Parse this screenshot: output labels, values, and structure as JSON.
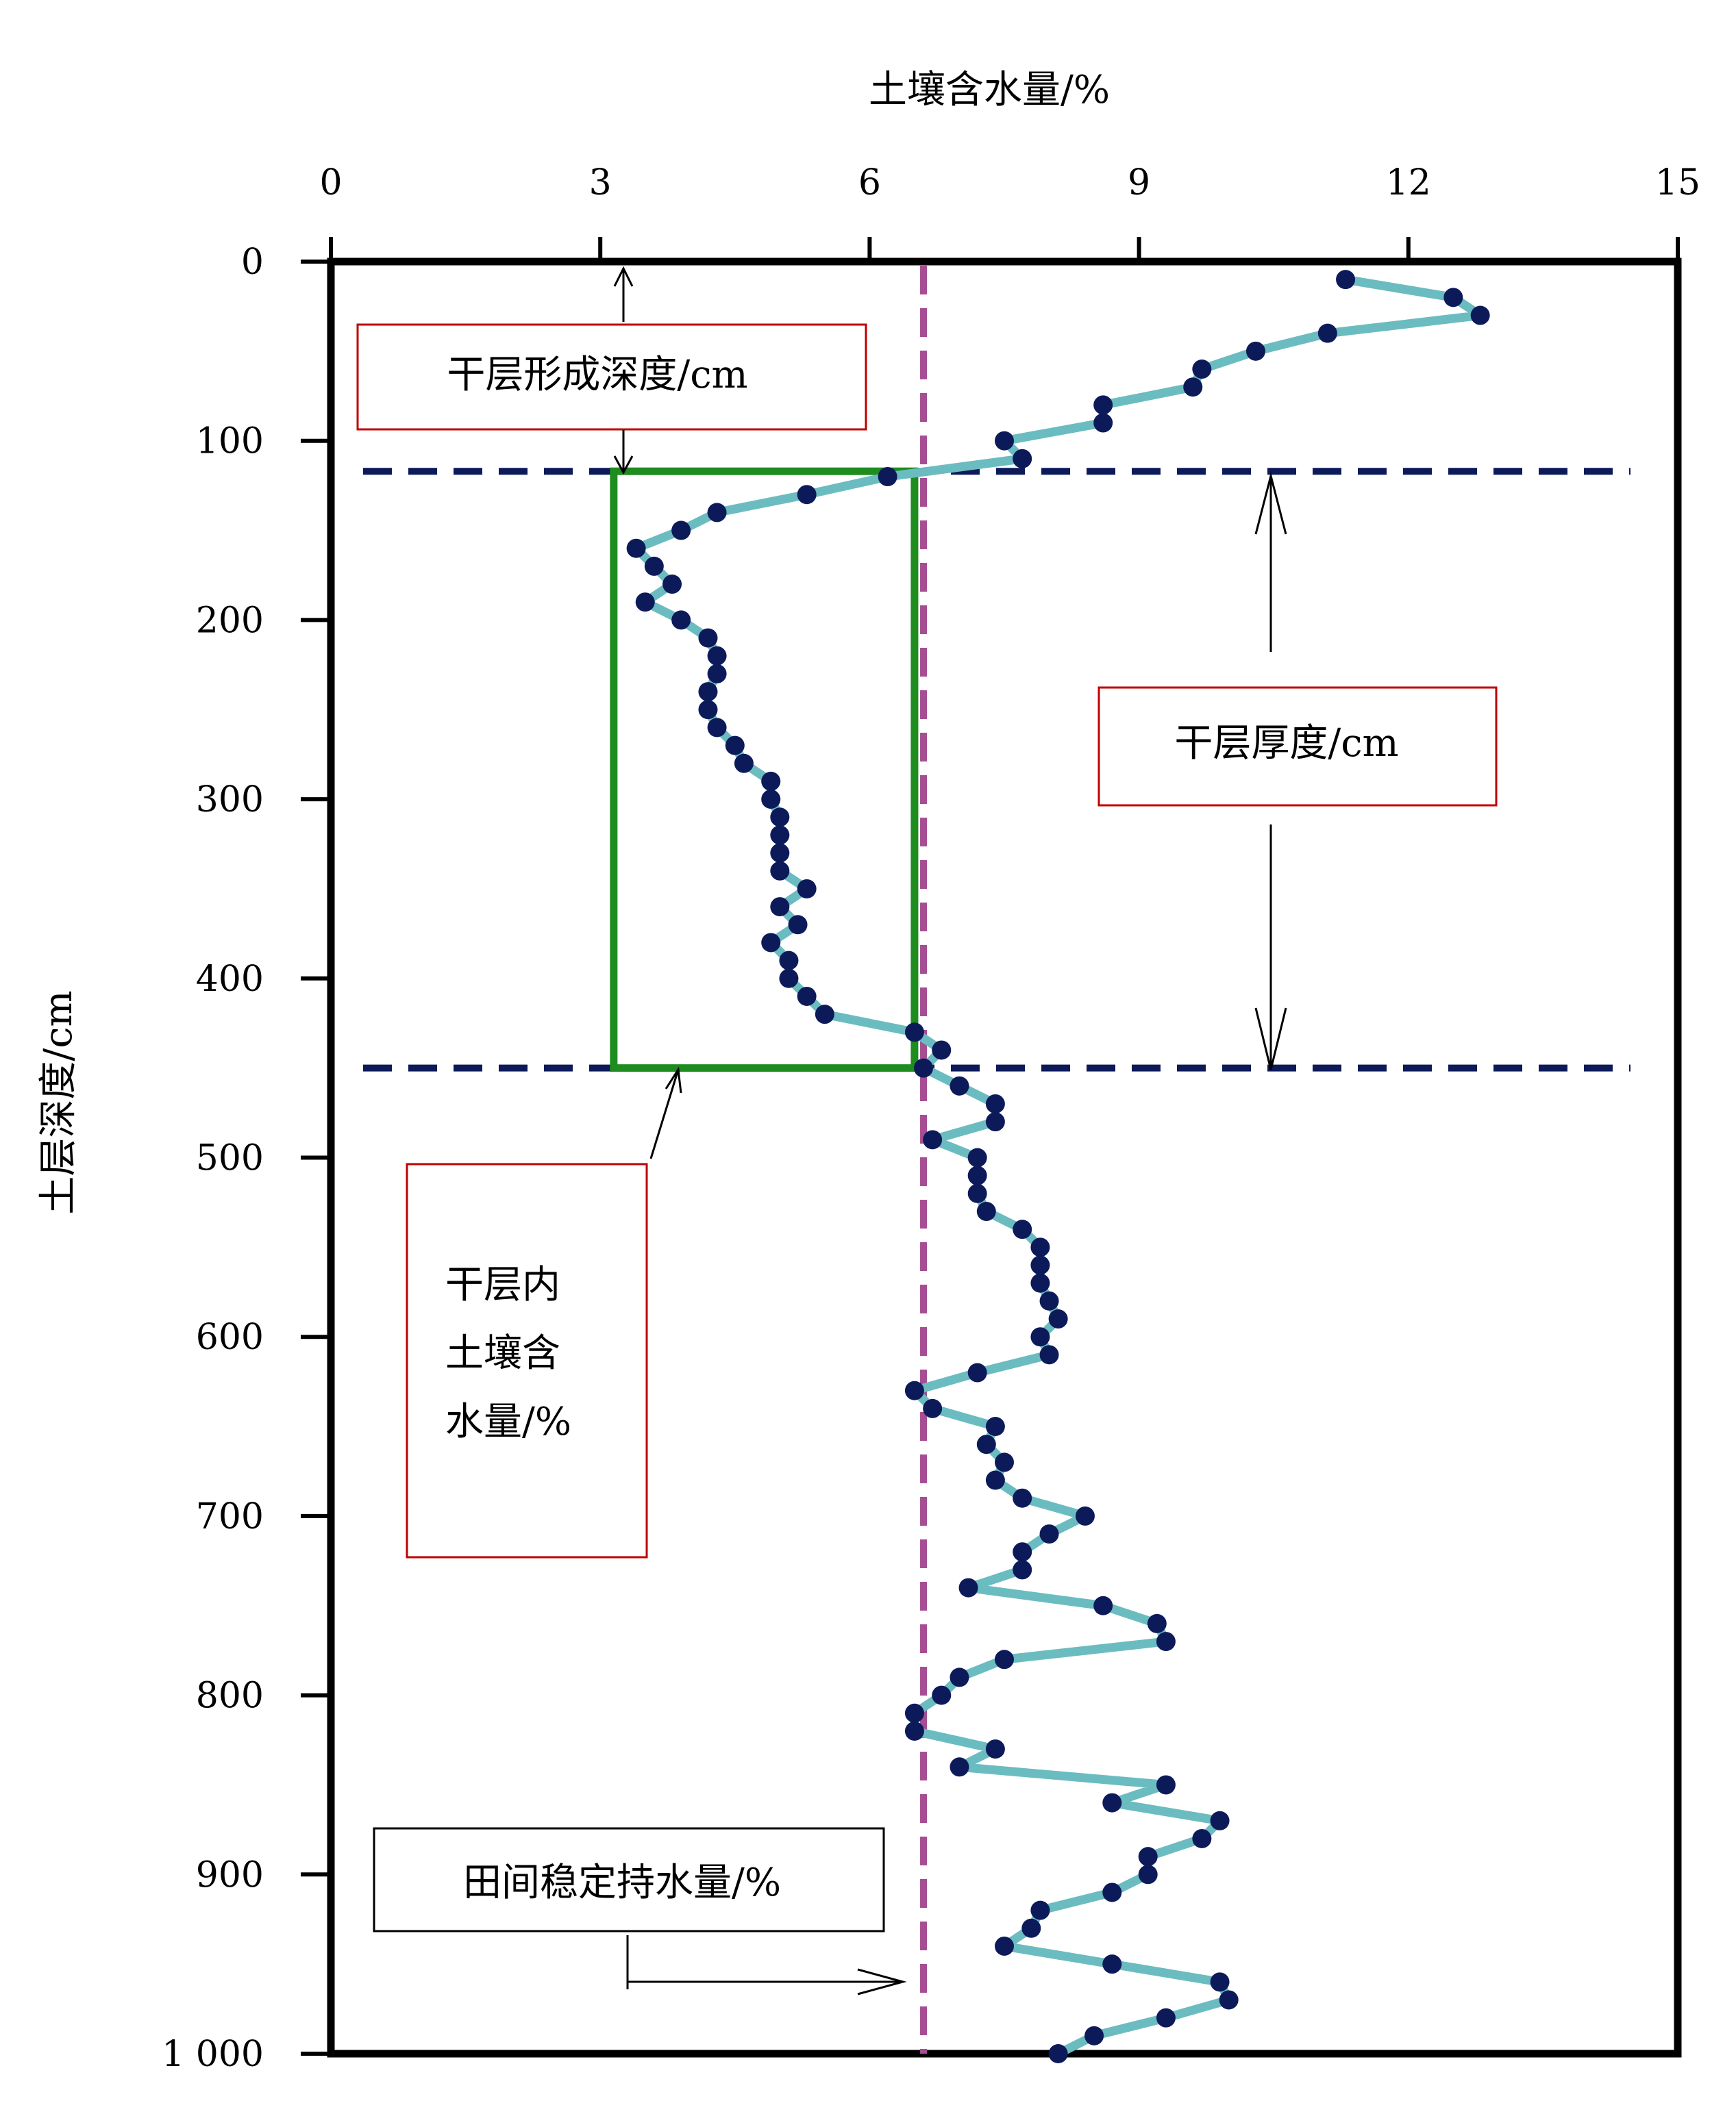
{
  "chart_data": {
    "type": "line",
    "title": "",
    "xlabel": "土壤含水量/%",
    "ylabel": "土层深度/cm",
    "xlim": [
      0,
      15
    ],
    "ylim": [
      0,
      1000
    ],
    "x_ticks": [
      0,
      3,
      6,
      9,
      12,
      15
    ],
    "x_tick_labels": [
      "0",
      "3",
      "6",
      "9",
      "12",
      "15"
    ],
    "y_ticks": [
      0,
      100,
      200,
      300,
      400,
      500,
      600,
      700,
      800,
      900,
      1000
    ],
    "y_tick_labels": [
      "0",
      "100",
      "200",
      "300",
      "400",
      "500",
      "600",
      "700",
      "800",
      "900",
      "1 000"
    ],
    "y_inverted": true,
    "x_axis_position": "top",
    "grid": false,
    "series": [
      {
        "color": "#6bbcc0",
        "marker_color": "#0d1a5a",
        "points": [
          [
            11.3,
            10
          ],
          [
            12.5,
            20
          ],
          [
            12.8,
            30
          ],
          [
            11.1,
            40
          ],
          [
            10.3,
            50
          ],
          [
            9.7,
            60
          ],
          [
            9.6,
            70
          ],
          [
            8.6,
            80
          ],
          [
            8.6,
            90
          ],
          [
            7.5,
            100
          ],
          [
            7.7,
            110
          ],
          [
            6.2,
            120
          ],
          [
            5.3,
            130
          ],
          [
            4.3,
            140
          ],
          [
            3.9,
            150
          ],
          [
            3.4,
            160
          ],
          [
            3.6,
            170
          ],
          [
            3.8,
            180
          ],
          [
            3.5,
            190
          ],
          [
            3.9,
            200
          ],
          [
            4.2,
            210
          ],
          [
            4.3,
            220
          ],
          [
            4.3,
            230
          ],
          [
            4.2,
            240
          ],
          [
            4.2,
            250
          ],
          [
            4.3,
            260
          ],
          [
            4.5,
            270
          ],
          [
            4.6,
            280
          ],
          [
            4.9,
            290
          ],
          [
            4.9,
            300
          ],
          [
            5.0,
            310
          ],
          [
            5.0,
            320
          ],
          [
            5.0,
            330
          ],
          [
            5.0,
            340
          ],
          [
            5.3,
            350
          ],
          [
            5.0,
            360
          ],
          [
            5.2,
            370
          ],
          [
            4.9,
            380
          ],
          [
            5.1,
            390
          ],
          [
            5.1,
            400
          ],
          [
            5.3,
            410
          ],
          [
            5.5,
            420
          ],
          [
            6.5,
            430
          ],
          [
            6.8,
            440
          ],
          [
            6.6,
            450
          ],
          [
            7.0,
            460
          ],
          [
            7.4,
            470
          ],
          [
            7.4,
            480
          ],
          [
            6.7,
            490
          ],
          [
            7.2,
            500
          ],
          [
            7.2,
            510
          ],
          [
            7.2,
            520
          ],
          [
            7.3,
            530
          ],
          [
            7.7,
            540
          ],
          [
            7.9,
            550
          ],
          [
            7.9,
            560
          ],
          [
            7.9,
            570
          ],
          [
            8.0,
            580
          ],
          [
            8.1,
            590
          ],
          [
            7.9,
            600
          ],
          [
            8.0,
            610
          ],
          [
            7.2,
            620
          ],
          [
            6.5,
            630
          ],
          [
            6.7,
            640
          ],
          [
            7.4,
            650
          ],
          [
            7.3,
            660
          ],
          [
            7.5,
            670
          ],
          [
            7.4,
            680
          ],
          [
            7.7,
            690
          ],
          [
            8.4,
            700
          ],
          [
            8.0,
            710
          ],
          [
            7.7,
            720
          ],
          [
            7.7,
            730
          ],
          [
            7.1,
            740
          ],
          [
            8.6,
            750
          ],
          [
            9.2,
            760
          ],
          [
            9.3,
            770
          ],
          [
            7.5,
            780
          ],
          [
            7.0,
            790
          ],
          [
            6.8,
            800
          ],
          [
            6.5,
            810
          ],
          [
            6.5,
            820
          ],
          [
            7.4,
            830
          ],
          [
            7.0,
            840
          ],
          [
            9.3,
            850
          ],
          [
            8.7,
            860
          ],
          [
            9.9,
            870
          ],
          [
            9.7,
            880
          ],
          [
            9.1,
            890
          ],
          [
            9.1,
            900
          ],
          [
            8.7,
            910
          ],
          [
            7.9,
            920
          ],
          [
            7.8,
            930
          ],
          [
            7.5,
            940
          ],
          [
            8.7,
            950
          ],
          [
            9.9,
            960
          ],
          [
            10.0,
            970
          ],
          [
            9.3,
            980
          ],
          [
            8.5,
            990
          ],
          [
            8.1,
            1000
          ]
        ]
      }
    ],
    "reference_lines": {
      "field_capacity_x": 6.6,
      "dry_layer_top_depth": 117,
      "dry_layer_bottom_depth": 450,
      "dry_layer_box_x": [
        3.15,
        6.5
      ]
    },
    "annotations": {
      "dry_layer_formation_depth": "干层形成深度/cm",
      "dry_layer_thickness": "干层厚度/cm",
      "dry_layer_moisture": [
        "干层内",
        "土壤含",
        "水量/%"
      ],
      "field_capacity": "田间稳定持水量/%"
    },
    "colors": {
      "line": "#6bbcc0",
      "marker": "#0d1a5a",
      "dashed_horizontal": "#0d1a5a",
      "dashed_vertical": "#a64d94",
      "box": "#1e8c1e",
      "label_box_red": "#c00000",
      "label_box_black": "#000000"
    }
  }
}
